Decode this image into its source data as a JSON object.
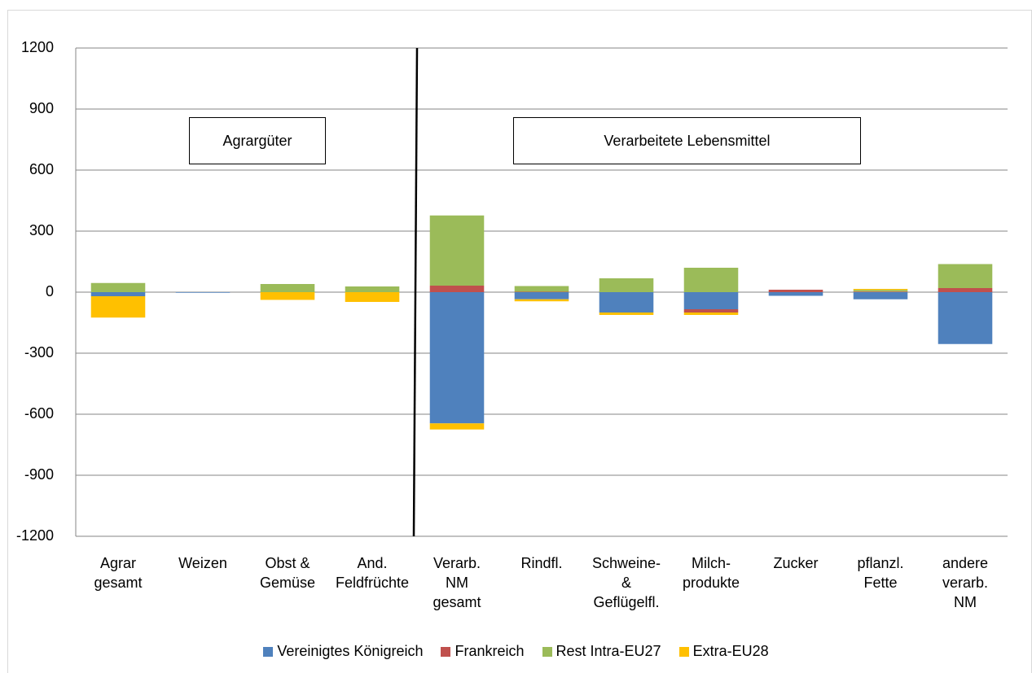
{
  "chart_data": {
    "type": "bar",
    "stacked": true,
    "categories": [
      "Agrar\ngesamt",
      "Weizen",
      "Obst &\nGemüse",
      "And.\nFeldfrüchte",
      "Verarb.\nNM\ngesamt",
      "Rindfl.",
      "Schweine-\n&\nGeflügelfl.",
      "Milch-\nprodukte",
      "Zucker",
      "pflanzl.\nFette",
      "andere\nverarb.\nNM"
    ],
    "series": [
      {
        "name": "Vereinigtes Königreich",
        "color": "#4f81bd",
        "values": [
          -20,
          -3,
          0,
          0,
          -645,
          -35,
          -100,
          -84,
          -18,
          -35,
          -255
        ]
      },
      {
        "name": "Frankreich",
        "color": "#c0504d",
        "values": [
          0,
          0,
          0,
          0,
          32,
          2,
          0,
          -16,
          12,
          3,
          20
        ]
      },
      {
        "name": "Rest Intra-EU27",
        "color": "#9bbb59",
        "values": [
          45,
          0,
          40,
          28,
          345,
          28,
          68,
          120,
          0,
          8,
          118
        ]
      },
      {
        "name": "Extra-EU28",
        "color": "#ffc000",
        "values": [
          -105,
          0,
          -38,
          -48,
          -30,
          -10,
          -12,
          -12,
          0,
          5,
          0
        ]
      }
    ],
    "ylim": [
      -1200,
      1200
    ],
    "yticks": [
      -1200,
      -900,
      -600,
      -300,
      0,
      300,
      600,
      900,
      1200
    ],
    "grid": true,
    "annotations": [
      "Agrargüter",
      "Verarbeitete Lebensmittel"
    ]
  }
}
